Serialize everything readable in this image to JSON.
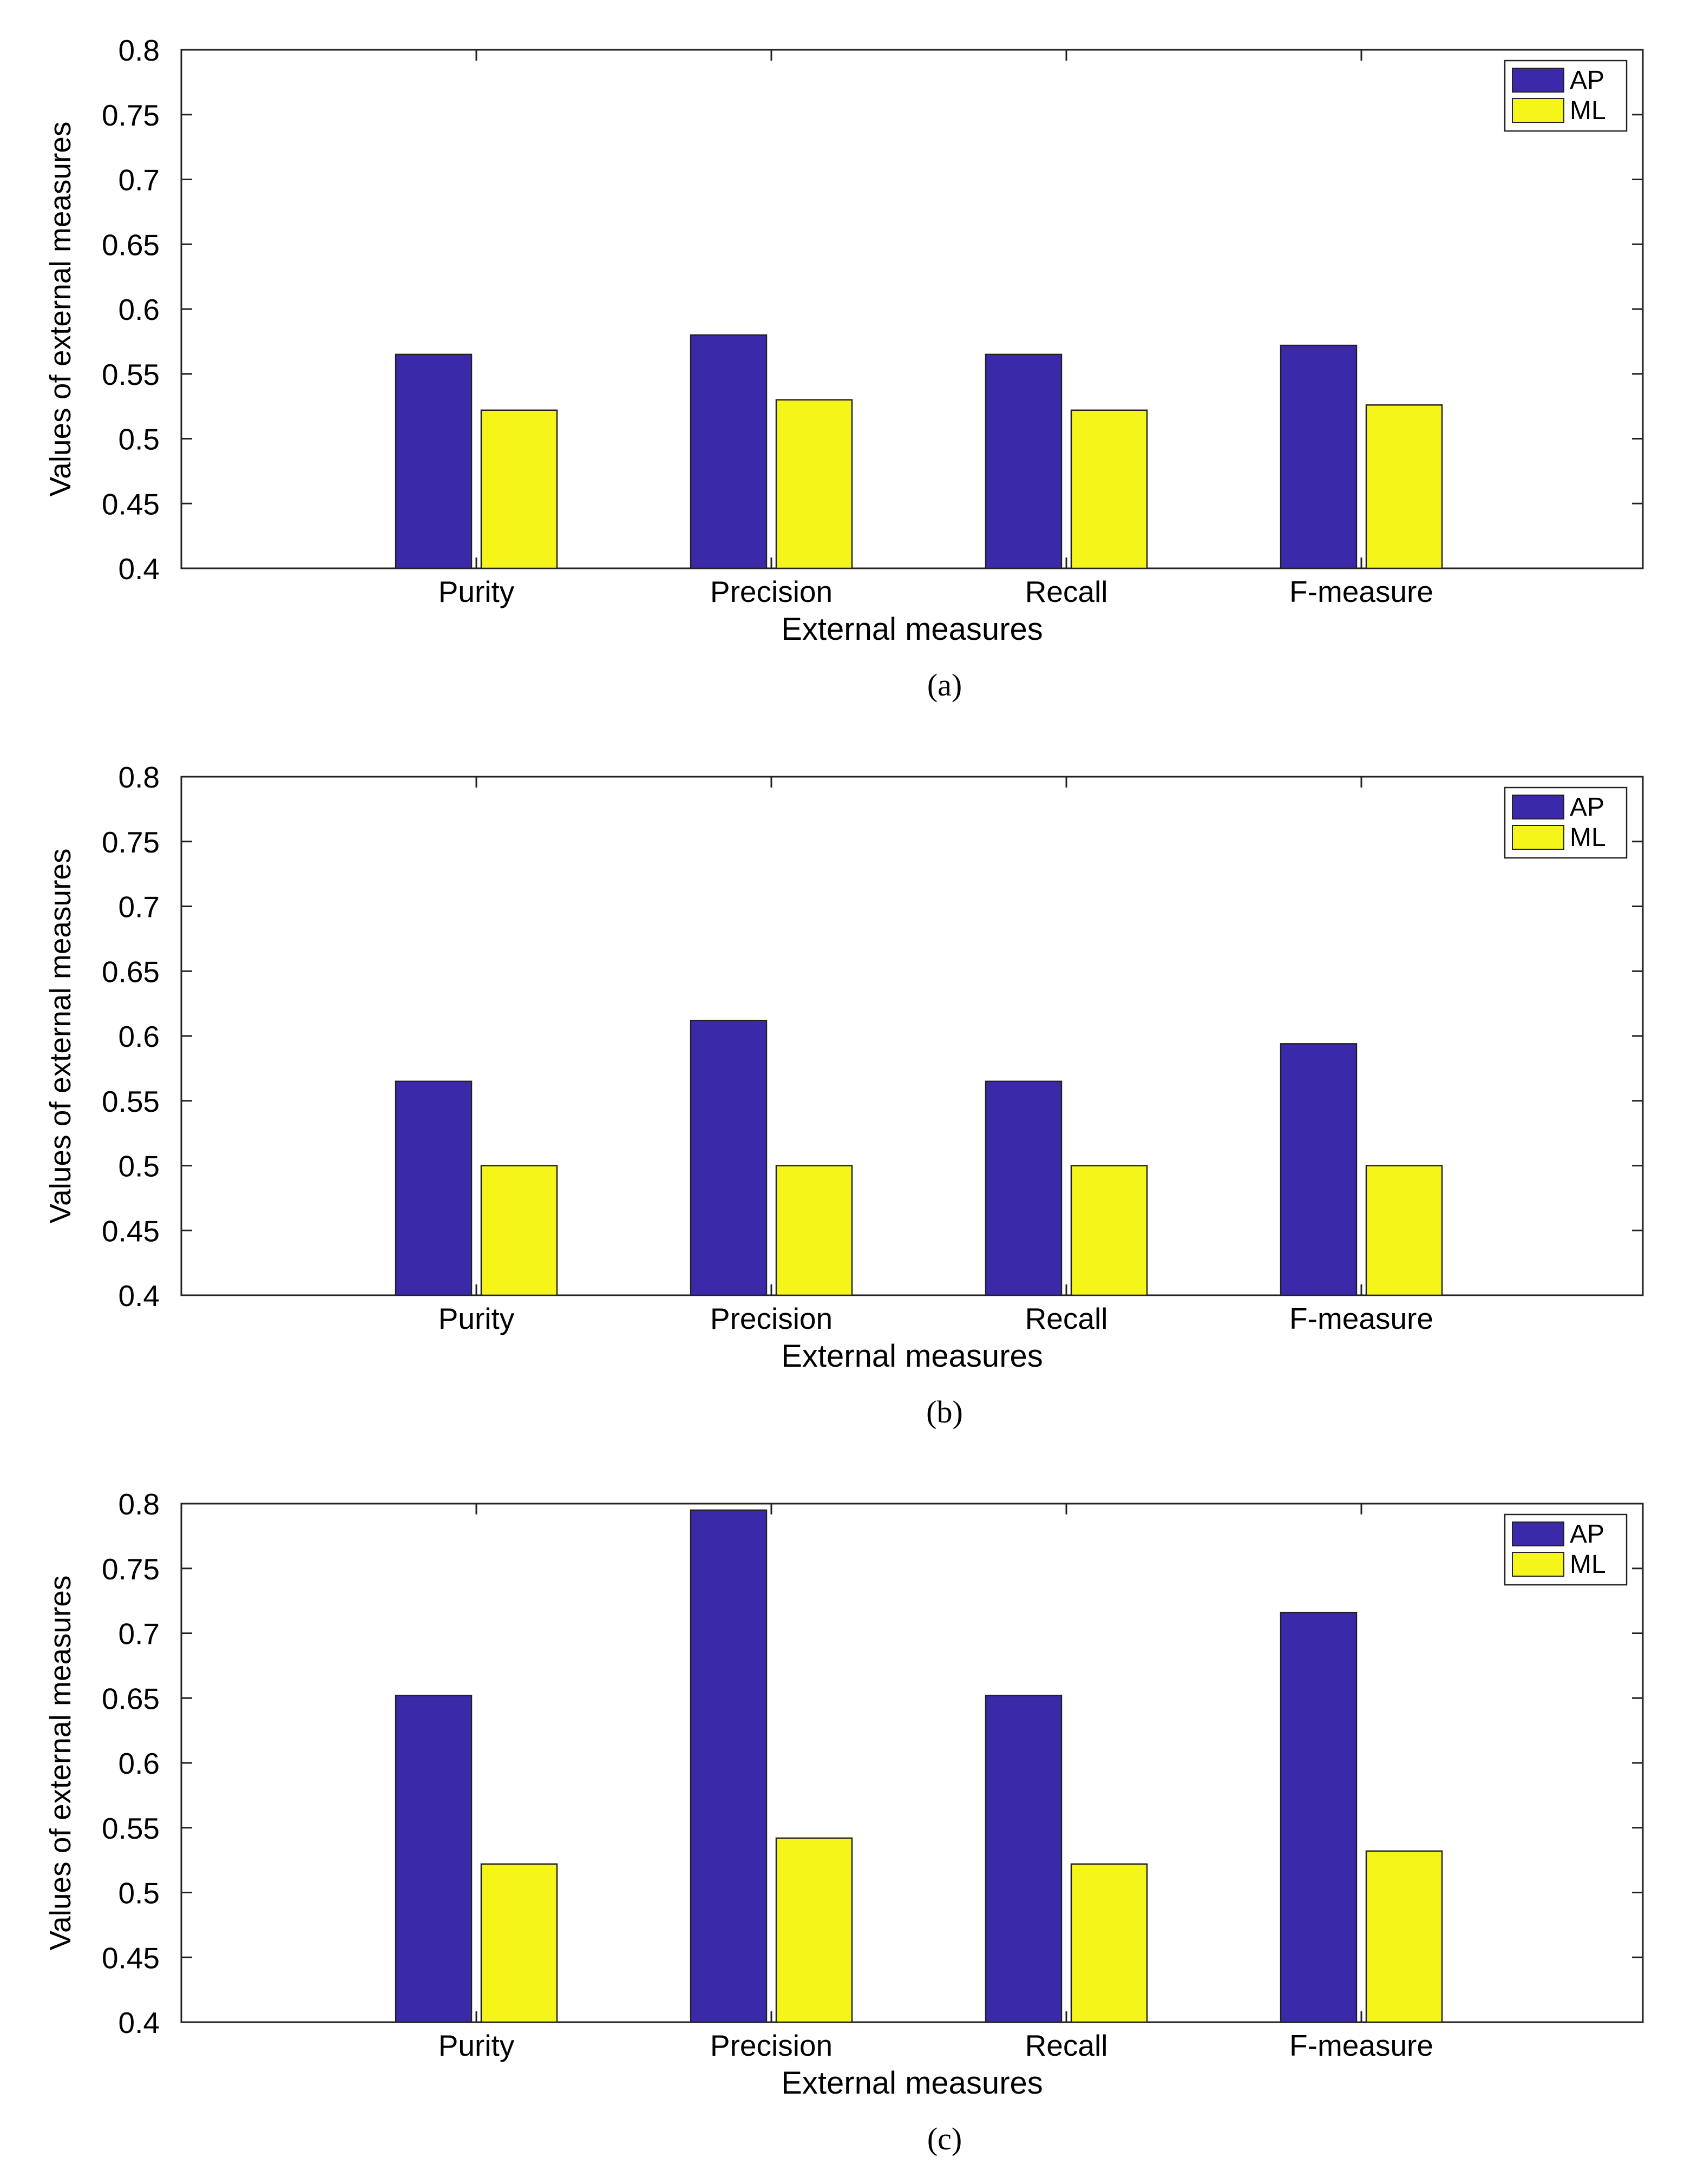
{
  "panel_captions": [
    "(a)",
    "(b)",
    "(c)"
  ],
  "colors": {
    "AP": "#3a29a8",
    "ML": "#f5f51a",
    "axis": "#222222"
  },
  "chart_data": [
    {
      "type": "bar",
      "categories": [
        "Purity",
        "Precision",
        "Recall",
        "F-measure"
      ],
      "series": [
        {
          "name": "AP",
          "values": [
            0.565,
            0.58,
            0.565,
            0.572
          ]
        },
        {
          "name": "ML",
          "values": [
            0.522,
            0.53,
            0.522,
            0.526
          ]
        }
      ],
      "xlabel": "External measures",
      "ylabel": "Values of external measures",
      "ylim": [
        0.4,
        0.8
      ],
      "yticks": [
        "0.4",
        "0.45",
        "0.5",
        "0.55",
        "0.6",
        "0.65",
        "0.7",
        "0.75",
        "0.8"
      ],
      "legend_position": "top-right",
      "grid": false
    },
    {
      "type": "bar",
      "categories": [
        "Purity",
        "Precision",
        "Recall",
        "F-measure"
      ],
      "series": [
        {
          "name": "AP",
          "values": [
            0.565,
            0.612,
            0.565,
            0.594
          ]
        },
        {
          "name": "ML",
          "values": [
            0.5,
            0.5,
            0.5,
            0.5
          ]
        }
      ],
      "xlabel": "External measures",
      "ylabel": "Values of external measures",
      "ylim": [
        0.4,
        0.8
      ],
      "yticks": [
        "0.4",
        "0.45",
        "0.5",
        "0.55",
        "0.6",
        "0.65",
        "0.7",
        "0.75",
        "0.8"
      ],
      "legend_position": "top-right",
      "grid": false
    },
    {
      "type": "bar",
      "categories": [
        "Purity",
        "Precision",
        "Recall",
        "F-measure"
      ],
      "series": [
        {
          "name": "AP",
          "values": [
            0.652,
            0.795,
            0.652,
            0.716
          ]
        },
        {
          "name": "ML",
          "values": [
            0.522,
            0.542,
            0.522,
            0.532
          ]
        }
      ],
      "xlabel": "External measures",
      "ylabel": "Values of external measures",
      "ylim": [
        0.4,
        0.8
      ],
      "yticks": [
        "0.4",
        "0.45",
        "0.5",
        "0.55",
        "0.6",
        "0.65",
        "0.7",
        "0.75",
        "0.8"
      ],
      "legend_position": "top-right",
      "grid": false
    }
  ]
}
